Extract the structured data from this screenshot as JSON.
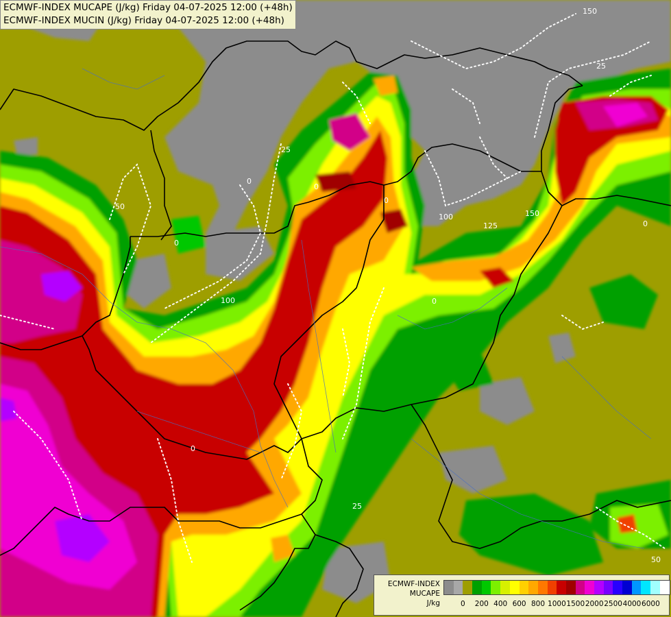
{
  "title": {
    "line1": "ECMWF-INDEX MUCAPE (J/kg) Friday 04-07-2025 12:00 (+48h)",
    "line2": "ECMWF-INDEX MUCIN (J/kg) Friday 04-07-2025 12:00 (+48h)"
  },
  "legend": {
    "line1": "ECMWF-INDEX",
    "line2": "MUCAPE",
    "line3": "J/kg",
    "colors": [
      "#8c8c8c",
      "#a8a8a8",
      "#9e9e00",
      "#00a000",
      "#00c800",
      "#7cf000",
      "#d7f000",
      "#ffff00",
      "#ffd000",
      "#ffa800",
      "#ff7800",
      "#f04000",
      "#c80000",
      "#a00000",
      "#d20088",
      "#f000d2",
      "#b400ff",
      "#7800ff",
      "#2800ff",
      "#0000d2",
      "#0096ff",
      "#00e6ff",
      "#a0ffff",
      "#ffffff"
    ],
    "ticks": [
      "0",
      "200",
      "400",
      "600",
      "800",
      "1000",
      "1500",
      "2000",
      "2500",
      "4000",
      "6000"
    ]
  },
  "contour_labels": [
    "25",
    "50",
    "0",
    "100",
    "125",
    "150",
    "25",
    "0",
    "0",
    "100",
    "150",
    "0",
    "25",
    "50",
    "0",
    "0",
    "0"
  ]
}
